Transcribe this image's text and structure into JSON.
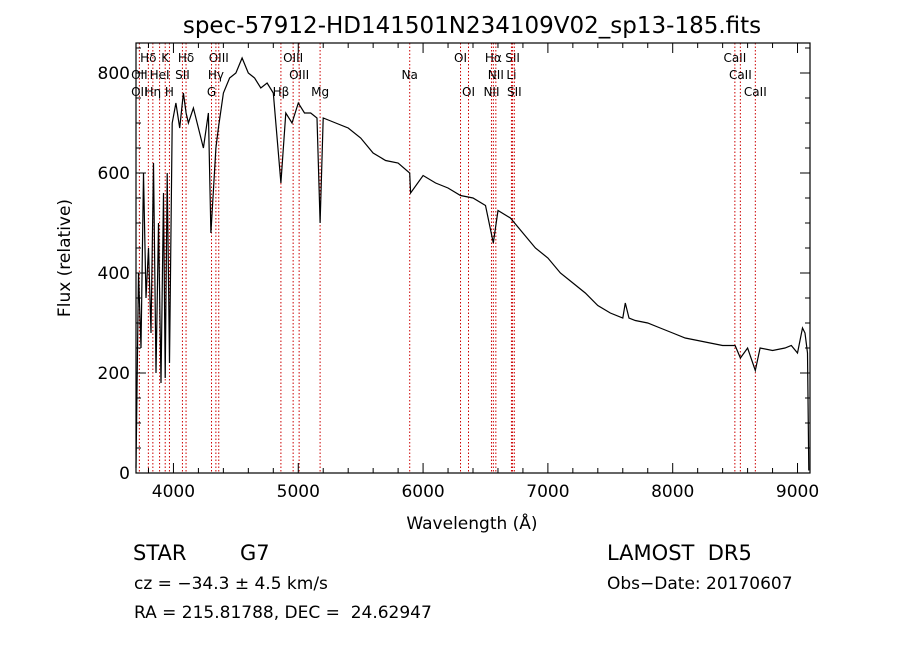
{
  "chart_data": {
    "type": "line",
    "title": "spec-57912-HD141501N234109V02_sp13-185.fits",
    "xlabel": "Wavelength (Å)",
    "ylabel": "Flux (relative)",
    "xlim": [
      3700,
      9100
    ],
    "ylim": [
      0,
      860
    ],
    "xticks": [
      4000,
      5000,
      6000,
      7000,
      8000,
      9000
    ],
    "yticks": [
      0,
      200,
      400,
      600,
      800
    ],
    "grid": false,
    "line_color": "#000000",
    "marker_color": "#cc0000",
    "series": [
      {
        "x": [
          3700,
          3720,
          3740,
          3760,
          3780,
          3800,
          3820,
          3840,
          3860,
          3880,
          3900,
          3920,
          3934,
          3950,
          3968,
          3990,
          4020,
          4050,
          4080,
          4101,
          4120,
          4160,
          4200,
          4240,
          4280,
          4300,
          4340,
          4360,
          4400,
          4450,
          4500,
          4550,
          4600,
          4650,
          4700,
          4750,
          4800,
          4861,
          4900,
          4950,
          5000,
          5050,
          5100,
          5150,
          5175,
          5200,
          5250,
          5300,
          5400,
          5500,
          5600,
          5700,
          5800,
          5893,
          5900,
          6000,
          6100,
          6200,
          6300,
          6400,
          6500,
          6563,
          6600,
          6700,
          6800,
          6900,
          7000,
          7100,
          7200,
          7300,
          7400,
          7500,
          7600,
          7620,
          7650,
          7700,
          7800,
          7900,
          8000,
          8100,
          8200,
          8300,
          8400,
          8500,
          8542,
          8600,
          8662,
          8700,
          8800,
          8900,
          8950,
          9000,
          9020,
          9040,
          9060,
          9080,
          9090
        ],
        "y": [
          10,
          400,
          250,
          600,
          350,
          450,
          280,
          620,
          200,
          500,
          180,
          560,
          190,
          600,
          220,
          700,
          740,
          690,
          760,
          720,
          700,
          730,
          690,
          650,
          720,
          480,
          650,
          690,
          760,
          790,
          800,
          830,
          800,
          790,
          770,
          780,
          760,
          580,
          720,
          700,
          740,
          720,
          720,
          710,
          500,
          710,
          705,
          700,
          690,
          670,
          640,
          625,
          620,
          600,
          560,
          595,
          580,
          570,
          555,
          550,
          535,
          460,
          525,
          510,
          480,
          450,
          430,
          400,
          380,
          360,
          335,
          320,
          310,
          340,
          310,
          305,
          300,
          290,
          280,
          270,
          265,
          260,
          255,
          255,
          230,
          250,
          205,
          250,
          245,
          250,
          255,
          240,
          265,
          290,
          280,
          240,
          5
        ]
      }
    ],
    "spectral_lines": [
      {
        "label": "Hδ",
        "x": 3799,
        "row": 1
      },
      {
        "label": "K",
        "x": 3934,
        "row": 1
      },
      {
        "label": "Hδ",
        "x": 4101,
        "row": 1
      },
      {
        "label": "OIII",
        "x": 4363,
        "row": 1
      },
      {
        "label": "OIII",
        "x": 4959,
        "row": 1
      },
      {
        "label": "OI",
        "x": 6300,
        "row": 1
      },
      {
        "label": "Hα",
        "x": 6563,
        "row": 1
      },
      {
        "label": "SII",
        "x": 6717,
        "row": 1
      },
      {
        "label": "CaII",
        "x": 8498,
        "row": 1
      },
      {
        "label": "OII",
        "x": 3727,
        "row": 2
      },
      {
        "label": "HeI",
        "x": 3889,
        "row": 2
      },
      {
        "label": "SII",
        "x": 4072,
        "row": 2
      },
      {
        "label": "Hγ",
        "x": 4340,
        "row": 2
      },
      {
        "label": "OIII",
        "x": 5007,
        "row": 2
      },
      {
        "label": "Na",
        "x": 5893,
        "row": 2
      },
      {
        "label": "NII",
        "x": 6583,
        "row": 2
      },
      {
        "label": "Li",
        "x": 6708,
        "row": 2
      },
      {
        "label": "CaII",
        "x": 8542,
        "row": 2
      },
      {
        "label": "OII",
        "x": 3727,
        "row": 3
      },
      {
        "label": "Hη",
        "x": 3835,
        "row": 3
      },
      {
        "label": "H",
        "x": 3968,
        "row": 3
      },
      {
        "label": "G",
        "x": 4305,
        "row": 3
      },
      {
        "label": "Hβ",
        "x": 4861,
        "row": 3
      },
      {
        "label": "Mg",
        "x": 5175,
        "row": 3
      },
      {
        "label": "OI",
        "x": 6364,
        "row": 3
      },
      {
        "label": "NII",
        "x": 6548,
        "row": 3
      },
      {
        "label": "SII",
        "x": 6731,
        "row": 3
      },
      {
        "label": "CaII",
        "x": 8662,
        "row": 3
      }
    ]
  },
  "info": {
    "object_class": "STAR",
    "subclass": "G7",
    "survey": "LAMOST  DR5",
    "cz": "cz = −34.3 ± 4.5 km/s",
    "obs_date": "Obs−Date: 20170607",
    "coords": "RA = 215.81788, DEC =  24.62947"
  }
}
